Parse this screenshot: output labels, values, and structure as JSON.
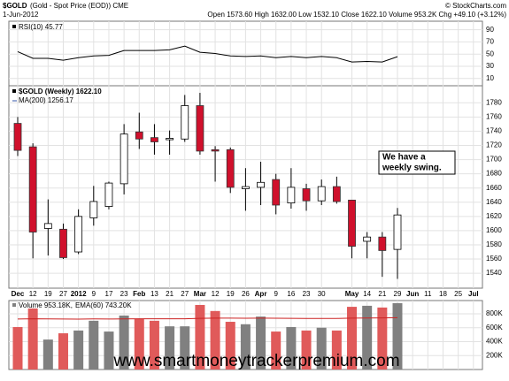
{
  "header": {
    "symbol": "$GOLD",
    "name": "(Gold - Spot Price (EOD)) CME",
    "credit": "© StockCharts.com",
    "date": "1-Jun-2012",
    "quote": "Open 1573.60 High 1632.00 Low 1532.10 Close 1622.10 Volume 953.2K Chg +49.10 (+3.12%)"
  },
  "watermark": "www.smartmoneytrackerpremium.com",
  "chart_data": [
    {
      "type": "line",
      "ylim": [
        -2,
        104
      ],
      "yticks": [
        90,
        70,
        50,
        30,
        10
      ],
      "grid": true,
      "series": [
        {
          "name": "RSI(10) 45.77",
          "color": "#000000",
          "values": [
            54,
            43,
            43,
            40,
            44,
            47,
            48,
            56,
            56,
            56,
            57,
            63,
            53,
            51,
            47,
            46,
            47,
            44,
            46,
            44,
            46,
            44,
            37,
            38,
            37,
            45.77,
            null,
            null,
            null,
            null,
            null
          ]
        }
      ]
    },
    {
      "type": "candlestick",
      "title": "$GOLD (Weekly) 1622.10",
      "ma_label": "MA(200) 1256.17",
      "ma_color": "#3355aa",
      "categories": [
        "Dec",
        "12",
        "19",
        "27",
        "2012",
        "9",
        "17",
        "23",
        "Feb",
        "13",
        "21",
        "27",
        "Mar",
        "12",
        "19",
        "26",
        "Apr",
        "9",
        "16",
        "23",
        "30",
        null,
        "May",
        "14",
        "21",
        "29",
        "Jun",
        "11",
        "18",
        "25",
        "Jul"
      ],
      "open": [
        1751,
        1718,
        1603,
        1602,
        1570,
        1618,
        1634,
        1666,
        1739,
        1731,
        1728,
        1729,
        1776,
        1714,
        1714,
        1659,
        1661,
        1672,
        1639,
        1659,
        1642,
        1662,
        1643,
        1585,
        1591,
        1573.6,
        null,
        null,
        null,
        null,
        null
      ],
      "high": [
        1760,
        1723,
        1644,
        1610,
        1630,
        1663,
        1669,
        1750,
        1766,
        1750,
        1741,
        1791,
        1794,
        1719,
        1717,
        1688,
        1697,
        1680,
        1688,
        1666,
        1672,
        1676,
        1643,
        1598,
        1598,
        1632,
        null,
        null,
        null,
        null,
        null
      ],
      "low": [
        1705,
        1561,
        1565,
        1560,
        1567,
        1607,
        1630,
        1651,
        1715,
        1707,
        1707,
        1725,
        1707,
        1669,
        1653,
        1628,
        1636,
        1623,
        1631,
        1628,
        1636,
        1638,
        1561,
        1561,
        1535,
        1532.1,
        null,
        null,
        null,
        null,
        null
      ],
      "close": [
        1713,
        1598,
        1610,
        1562,
        1620,
        1641,
        1667,
        1736,
        1729,
        1725,
        1730,
        1776,
        1712,
        1712,
        1661,
        1662,
        1668,
        1636,
        1661,
        1642,
        1662,
        1641,
        1578,
        1591,
        1572,
        1622.1,
        null,
        null,
        null,
        null,
        null
      ],
      "up_color": "#000000",
      "down_color": "#d0102c",
      "ylim": [
        1519,
        1804
      ],
      "yticks": [
        1540,
        1560,
        1580,
        1600,
        1620,
        1640,
        1660,
        1680,
        1700,
        1720,
        1740,
        1760,
        1780
      ],
      "grid": true,
      "annotation": [
        "We have a",
        "weekly swing."
      ],
      "annotation_color": "#0000dd"
    },
    {
      "type": "bar",
      "ylim": [
        0,
        990000
      ],
      "yticks": [
        {
          "value": 200000,
          "label": "200K"
        },
        {
          "value": 400000,
          "label": "400K"
        },
        {
          "value": 600000,
          "label": "600K"
        },
        {
          "value": 800000,
          "label": "800K"
        }
      ],
      "grid": true,
      "up_color": "#808080",
      "down_color": "#e05a5a",
      "series": [
        {
          "name": "Volume 953.18K,",
          "color": "#808080",
          "values": [
            610000,
            876000,
            430000,
            520000,
            560000,
            700000,
            545000,
            775000,
            725000,
            700000,
            620000,
            620000,
            927000,
            840000,
            685000,
            650000,
            760000,
            545000,
            610000,
            560000,
            600000,
            560000,
            900000,
            915000,
            890000,
            953180,
            null,
            null,
            null,
            null,
            null
          ]
        },
        {
          "name": "EMA(60) 743.20K",
          "color": "#cc2222",
          "values": [
            725000,
            728000,
            726000,
            725000,
            724000,
            726000,
            725000,
            727000,
            728000,
            729000,
            729000,
            729000,
            735000,
            738000,
            737000,
            736000,
            738000,
            736000,
            735000,
            734000,
            734000,
            733000,
            737000,
            740000,
            741000,
            743200,
            null,
            null,
            null,
            null,
            null
          ]
        }
      ]
    }
  ]
}
